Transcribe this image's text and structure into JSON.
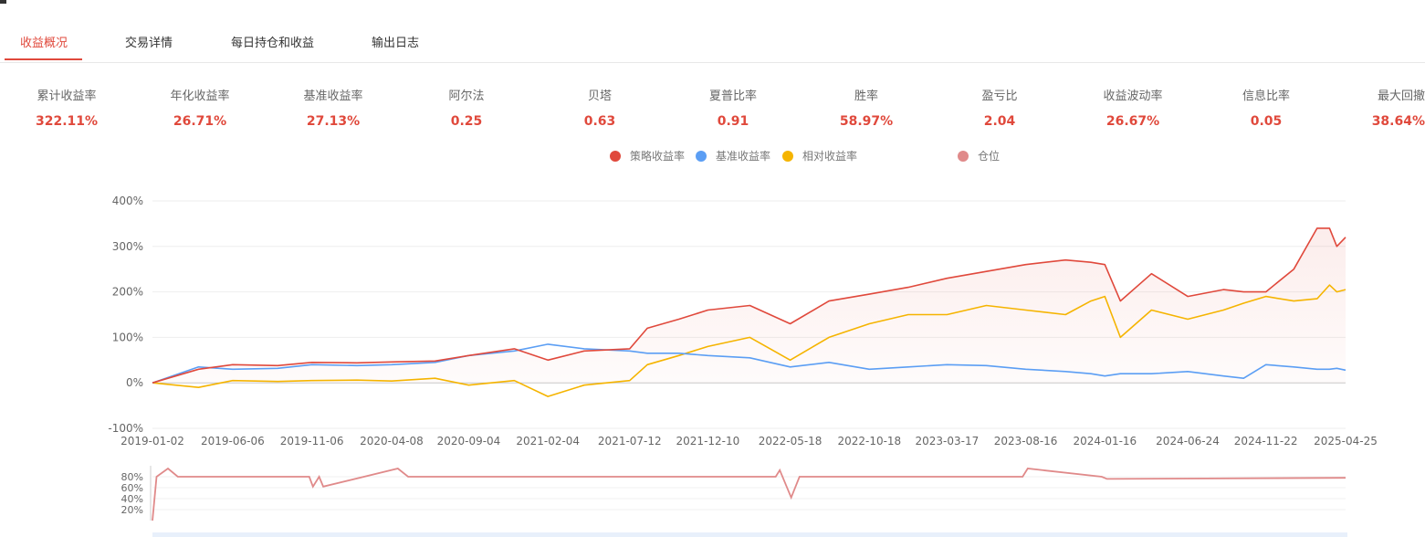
{
  "tabs": [
    {
      "label": "收益概况",
      "active": true
    },
    {
      "label": "交易详情",
      "active": false
    },
    {
      "label": "每日持仓和收益",
      "active": false
    },
    {
      "label": "输出日志",
      "active": false
    }
  ],
  "metrics": [
    {
      "label": "累计收益率",
      "value": "322.11%"
    },
    {
      "label": "年化收益率",
      "value": "26.71%"
    },
    {
      "label": "基准收益率",
      "value": "27.13%"
    },
    {
      "label": "阿尔法",
      "value": "0.25"
    },
    {
      "label": "贝塔",
      "value": "0.63"
    },
    {
      "label": "夏普比率",
      "value": "0.91"
    },
    {
      "label": "胜率",
      "value": "58.97%"
    },
    {
      "label": "盈亏比",
      "value": "2.04"
    },
    {
      "label": "收益波动率",
      "value": "26.67%"
    },
    {
      "label": "信息比率",
      "value": "0.05"
    },
    {
      "label": "最大回撤",
      "value": "38.64%"
    }
  ],
  "colors": {
    "strategy": "#e0493c",
    "benchmark": "#5b9ef4",
    "relative": "#f5b400",
    "position": "#e08a8a",
    "accent": "#e0493c"
  },
  "chart_data": [
    {
      "type": "line",
      "ylim": [
        -100,
        400
      ],
      "yticks": [
        "400%",
        "300%",
        "200%",
        "100%",
        "0%",
        "-100%"
      ],
      "ytick_values": [
        400,
        300,
        200,
        100,
        0,
        -100
      ],
      "xtick_labels": [
        "2019-01-02",
        "2019-06-06",
        "2019-11-06",
        "2020-04-08",
        "2020-09-04",
        "2021-02-04",
        "2021-07-12",
        "2021-12-10",
        "2022-05-18",
        "2022-10-18",
        "2023-03-17",
        "2023-08-16",
        "2024-01-16",
        "2024-06-24",
        "2024-11-22",
        "2025-04-25"
      ],
      "legend_position": "top-center",
      "grid": true,
      "x": [
        "2019-01-02",
        "2019-04-01",
        "2019-06-06",
        "2019-09-01",
        "2019-11-06",
        "2020-02-01",
        "2020-04-08",
        "2020-07-01",
        "2020-09-04",
        "2020-12-01",
        "2021-02-04",
        "2021-04-15",
        "2021-07-12",
        "2021-08-15",
        "2021-10-15",
        "2021-12-10",
        "2022-03-01",
        "2022-05-18",
        "2022-08-01",
        "2022-10-18",
        "2023-01-01",
        "2023-03-17",
        "2023-06-01",
        "2023-08-16",
        "2023-11-01",
        "2023-12-20",
        "2024-01-16",
        "2024-02-15",
        "2024-04-15",
        "2024-06-24",
        "2024-09-01",
        "2024-10-10",
        "2024-11-22",
        "2025-01-15",
        "2025-03-01",
        "2025-03-25",
        "2025-04-08",
        "2025-04-25"
      ],
      "series": [
        {
          "name": "策略收益率",
          "key": "strategy",
          "values": [
            0,
            30,
            40,
            38,
            45,
            44,
            46,
            48,
            60,
            75,
            50,
            70,
            75,
            120,
            140,
            160,
            170,
            130,
            180,
            195,
            210,
            230,
            245,
            260,
            270,
            265,
            260,
            180,
            240,
            190,
            205,
            200,
            200,
            250,
            340,
            340,
            300,
            320
          ]
        },
        {
          "name": "基准收益率",
          "key": "benchmark",
          "values": [
            0,
            35,
            30,
            32,
            40,
            38,
            40,
            45,
            60,
            70,
            85,
            75,
            70,
            65,
            65,
            60,
            55,
            35,
            45,
            30,
            35,
            40,
            38,
            30,
            25,
            20,
            15,
            20,
            20,
            25,
            15,
            10,
            40,
            35,
            30,
            30,
            32,
            28
          ]
        },
        {
          "name": "相对收益率",
          "key": "relative",
          "values": [
            0,
            -10,
            5,
            3,
            5,
            6,
            4,
            10,
            -5,
            5,
            -30,
            -5,
            5,
            40,
            60,
            80,
            100,
            50,
            100,
            130,
            150,
            150,
            170,
            160,
            150,
            180,
            190,
            100,
            160,
            140,
            160,
            175,
            190,
            180,
            185,
            215,
            200,
            205
          ]
        }
      ]
    },
    {
      "type": "line",
      "ylim": [
        0,
        100
      ],
      "yticks": [
        "80%",
        "60%",
        "40%",
        "20%"
      ],
      "ytick_values": [
        80,
        60,
        40,
        20
      ],
      "x": [
        "2019-01-02",
        "2019-01-10",
        "2019-02-01",
        "2019-02-20",
        "2019-04-01",
        "2019-11-01",
        "2019-11-08",
        "2019-11-20",
        "2019-11-28",
        "2020-04-20",
        "2020-05-10",
        "2022-04-20",
        "2022-04-28",
        "2022-05-20",
        "2022-06-05",
        "2023-08-10",
        "2023-08-20",
        "2024-01-10",
        "2024-01-20",
        "2025-04-25"
      ],
      "series": [
        {
          "name": "仓位",
          "key": "position",
          "values": [
            0,
            80,
            95,
            80,
            80,
            80,
            62,
            80,
            62,
            95,
            80,
            80,
            92,
            42,
            80,
            80,
            95,
            80,
            76,
            78
          ]
        }
      ]
    }
  ]
}
